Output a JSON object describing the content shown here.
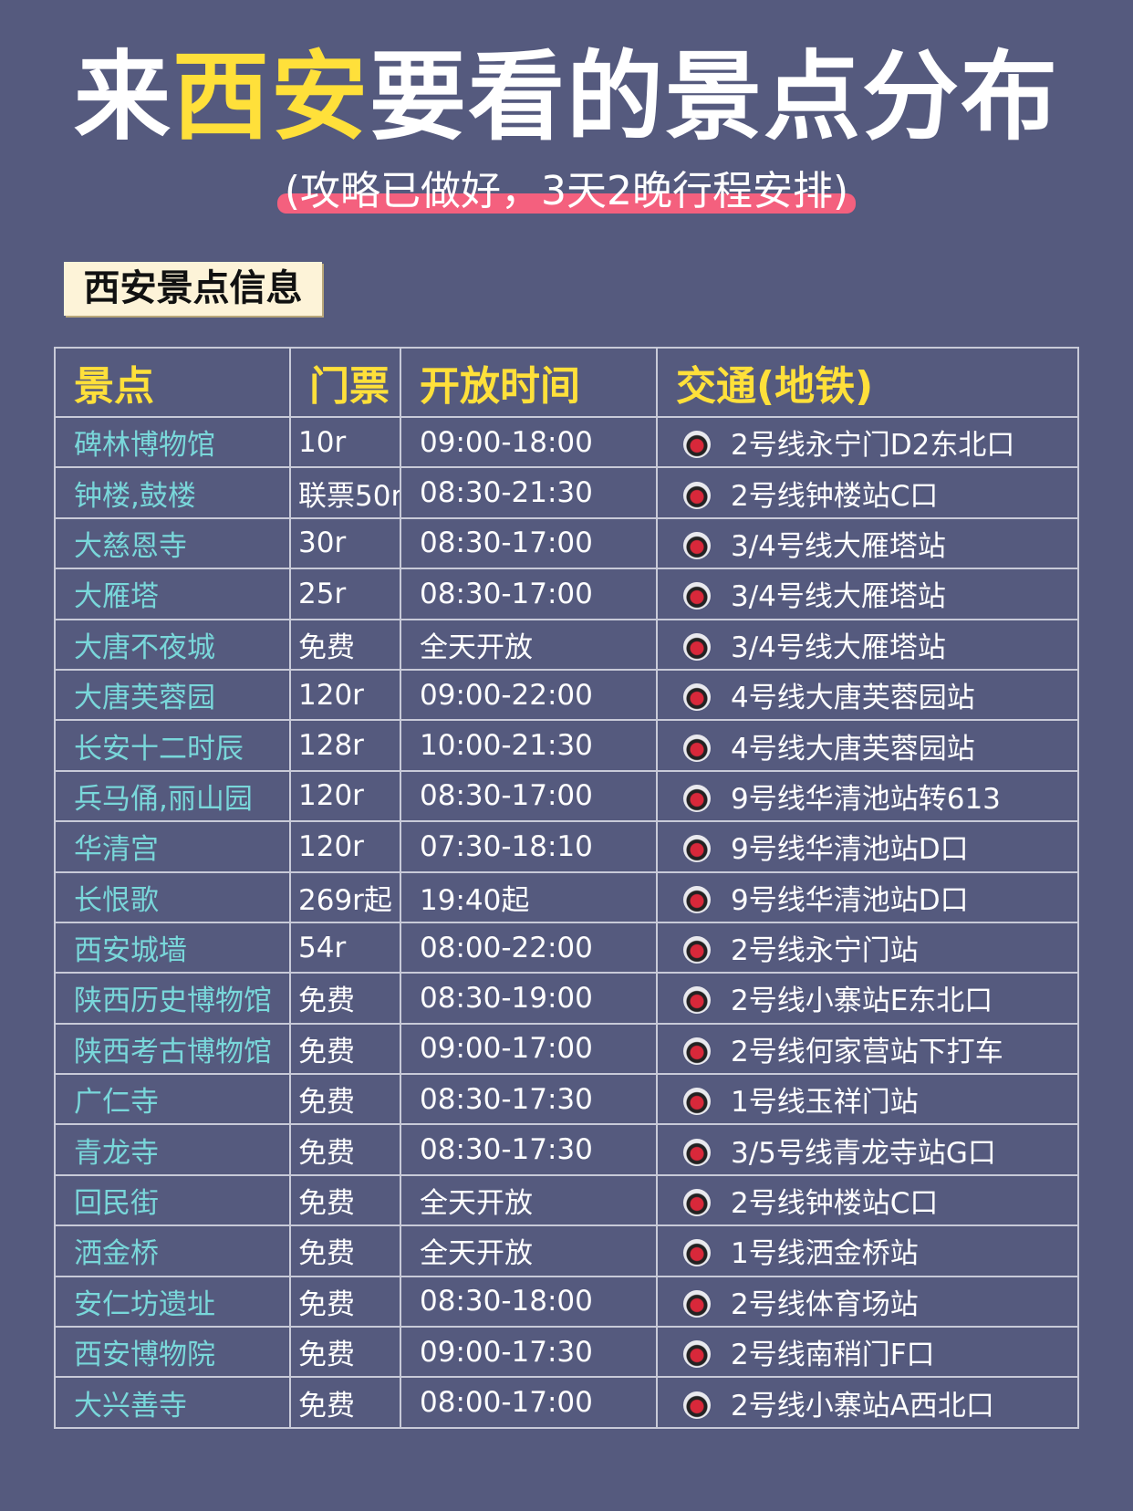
{
  "header": {
    "title": {
      "parts": [
        "来",
        "西安",
        "要看的景点分布"
      ]
    },
    "subtitle": "(攻略已做好，3天2晚行程安排)"
  },
  "section": "西安景点信息",
  "table": {
    "columns": [
      "景点",
      "门票",
      "开放时间",
      "交通(地铁)"
    ],
    "rows": [
      [
        "碑林博物馆",
        "10r",
        "09:00-18:00",
        "2号线永宁门D2东北口"
      ],
      [
        "钟楼,鼓楼",
        "联票50r",
        "08:30-21:30",
        "2号线钟楼站C口"
      ],
      [
        "大慈恩寺",
        "30r",
        "08:30-17:00",
        "3/4号线大雁塔站"
      ],
      [
        "大雁塔",
        "25r",
        "08:30-17:00",
        "3/4号线大雁塔站"
      ],
      [
        "大唐不夜城",
        "免费",
        "全天开放",
        "3/4号线大雁塔站"
      ],
      [
        "大唐芙蓉园",
        "120r",
        "09:00-22:00",
        "4号线大唐芙蓉园站"
      ],
      [
        "长安十二时辰",
        "128r",
        "10:00-21:30",
        "4号线大唐芙蓉园站"
      ],
      [
        "兵马俑,丽山园",
        "120r",
        "08:30-17:00",
        "9号线华清池站转613"
      ],
      [
        "华清宫",
        "120r",
        "07:30-18:10",
        "9号线华清池站D口"
      ],
      [
        "长恨歌",
        "269r起",
        "19:40起",
        "9号线华清池站D口"
      ],
      [
        "西安城墙",
        "54r",
        "08:00-22:00",
        "2号线永宁门站"
      ],
      [
        "陕西历史博物馆",
        "免费",
        "08:30-19:00",
        "2号线小寨站E东北口"
      ],
      [
        "陕西考古博物馆",
        "免费",
        "09:00-17:00",
        "2号线何家营站下打车"
      ],
      [
        "广仁寺",
        "免费",
        "08:30-17:30",
        "1号线玉祥门站"
      ],
      [
        "青龙寺",
        "免费",
        "08:30-17:30",
        "3/5号线青龙寺站G口"
      ],
      [
        "回民街",
        "免费",
        "全天开放",
        "2号线钟楼站C口"
      ],
      [
        "洒金桥",
        "免费",
        "全天开放",
        "1号线洒金桥站"
      ],
      [
        "安仁坊遗址",
        "免费",
        "08:30-18:00",
        "2号线体育场站"
      ],
      [
        "西安博物院",
        "免费",
        "09:00-17:30",
        "2号线南稍门F口"
      ],
      [
        "大兴善寺",
        "免费",
        "08:00-17:00",
        "2号线小寨站A西北口"
      ]
    ]
  }
}
